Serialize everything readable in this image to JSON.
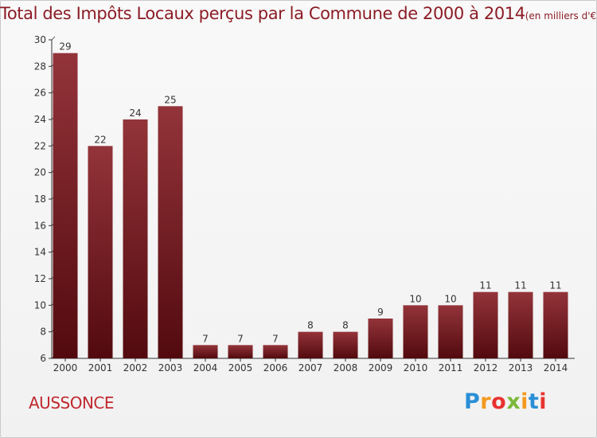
{
  "chart_data": {
    "type": "bar",
    "title": "Total des Impôts Locaux perçus par la Commune de 2000 à 2014",
    "unit": "(en milliers d'€)",
    "categories": [
      "2000",
      "2001",
      "2002",
      "2003",
      "2004",
      "2005",
      "2006",
      "2007",
      "2008",
      "2009",
      "2010",
      "2011",
      "2012",
      "2013",
      "2014"
    ],
    "values": [
      29,
      22,
      24,
      25,
      7,
      7,
      7,
      8,
      8,
      9,
      10,
      10,
      11,
      11,
      11
    ],
    "ylim": [
      6,
      30
    ],
    "yticks": [
      6,
      8,
      10,
      12,
      14,
      16,
      18,
      20,
      22,
      24,
      26,
      28,
      30
    ],
    "grid": false,
    "bar_color": "#6b0f14",
    "bar_color_light": "#93343a",
    "xlabel": "",
    "ylabel": ""
  },
  "commune": "AUSSONCE",
  "logo": {
    "text": "Proxiti",
    "colors": [
      "#2a8fd6",
      "#f39a1e",
      "#e8322f",
      "#7bb83a",
      "#f39a1e",
      "#2a8fd6",
      "#e8322f"
    ]
  }
}
